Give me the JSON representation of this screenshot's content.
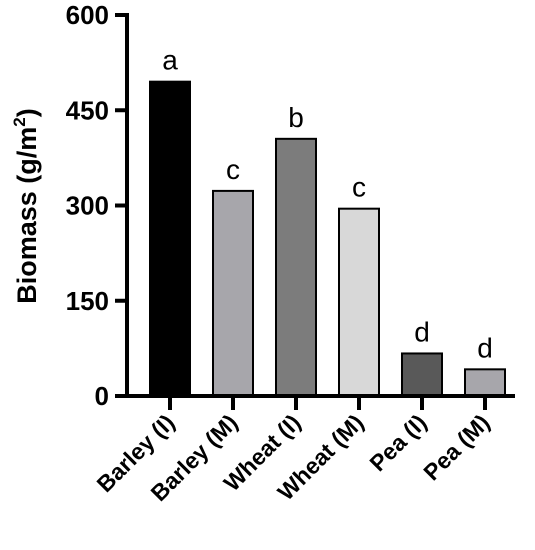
{
  "chart_data": {
    "type": "bar",
    "title": "",
    "xlabel": "",
    "ylabel": {
      "text": "Biomass (g/m",
      "superscript": "2",
      "suffix": ")"
    },
    "ylim": [
      0,
      600
    ],
    "yticks": [
      "0",
      "150",
      "300",
      "450",
      "600"
    ],
    "ytick_values": [
      0,
      150,
      300,
      450,
      600
    ],
    "grid": false,
    "categories": [
      "Barley (I)",
      "Barley (M)",
      "Wheat (I)",
      "Wheat (M)",
      "Pea (I)",
      "Pea (M)"
    ],
    "values": [
      495,
      323,
      405,
      295,
      67,
      42
    ],
    "significance_letters": [
      "a",
      "c",
      "b",
      "c",
      "d",
      "d"
    ],
    "bar_colors": [
      "#000000",
      "#a7a6ab",
      "#7c7c7c",
      "#d8d8d8",
      "#595959",
      "#a7a6ab"
    ]
  }
}
